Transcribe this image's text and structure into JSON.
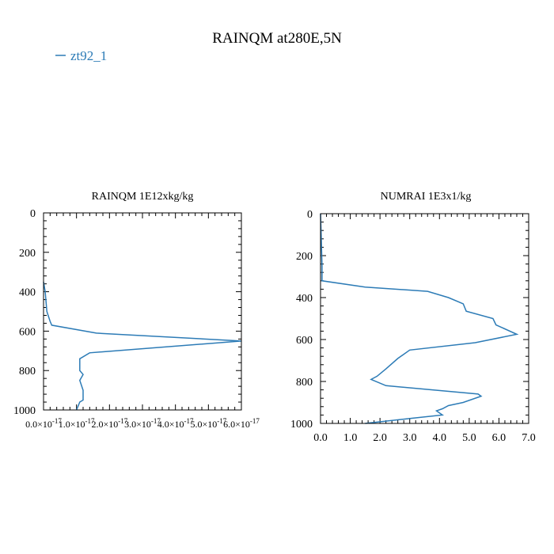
{
  "figure": {
    "title": "RAINQM at280E,5N",
    "legend_label": "zt92_1",
    "series_color": "#2c7bb6"
  },
  "chart_data": [
    {
      "type": "line",
      "title": "RAINQM  1E12xkg/kg",
      "xlabel": "",
      "ylabel": "",
      "orientation": "vertical-profile",
      "xlim": [
        0,
        6e-17
      ],
      "ylim": [
        1000,
        0
      ],
      "y_inverted": true,
      "grid": false,
      "xtick_labels": [
        "0.0×10",
        "1.0×10",
        "2.0×10",
        "3.0×10",
        "4.0×10",
        "5.0×10",
        "6.0×10"
      ],
      "xtick_exponents": [
        "-17",
        "-17",
        "-17",
        "-17",
        "-17",
        "-17",
        "-17"
      ],
      "xticks": [
        0,
        1e-17,
        2e-17,
        3e-17,
        4e-17,
        5e-17,
        6e-17
      ],
      "ytick_labels": [
        "0",
        "200",
        "400",
        "600",
        "800",
        "1000"
      ],
      "yticks": [
        0,
        200,
        400,
        600,
        800,
        1000
      ],
      "series": [
        {
          "name": "zt92_1",
          "x": [
            0,
            5e-19,
            1e-18,
            2e-18,
            2.5e-18,
            1.6e-17,
            6e-17,
            1.4e-17,
            1.1e-17,
            1.1e-17,
            1.2e-17,
            1.1e-17,
            1.2e-17,
            1.2e-17,
            1.1e-17,
            1e-17
          ],
          "y": [
            350,
            400,
            500,
            550,
            570,
            610,
            650,
            710,
            740,
            800,
            820,
            850,
            900,
            950,
            960,
            1000
          ]
        }
      ]
    },
    {
      "type": "line",
      "title": "NUMRAI  1E3x1/kg",
      "xlabel": "",
      "ylabel": "",
      "orientation": "vertical-profile",
      "xlim": [
        0,
        7
      ],
      "ylim": [
        1000,
        0
      ],
      "y_inverted": true,
      "grid": false,
      "xtick_labels": [
        "0.0",
        "1.0",
        "2.0",
        "3.0",
        "4.0",
        "5.0",
        "6.0",
        "7.0"
      ],
      "xticks": [
        0,
        1,
        2,
        3,
        4,
        5,
        6,
        7
      ],
      "ytick_labels": [
        "0",
        "200",
        "400",
        "600",
        "800",
        "1000"
      ],
      "yticks": [
        0,
        200,
        400,
        600,
        800,
        1000
      ],
      "series": [
        {
          "name": "zt92_1",
          "x": [
            0,
            0.02,
            0.05,
            0.05,
            1.5,
            3.6,
            4.3,
            4.8,
            4.9,
            5.8,
            5.9,
            6.6,
            5.2,
            3.0,
            2.6,
            2.2,
            1.9,
            1.7,
            2.2,
            5.3,
            5.4,
            4.8,
            4.3,
            4.1,
            3.9,
            4.1,
            3.1,
            1.5
          ],
          "y": [
            0,
            100,
            250,
            320,
            350,
            370,
            400,
            430,
            465,
            500,
            530,
            575,
            615,
            650,
            690,
            740,
            775,
            790,
            820,
            860,
            870,
            900,
            915,
            930,
            940,
            960,
            975,
            1000
          ]
        }
      ]
    }
  ]
}
